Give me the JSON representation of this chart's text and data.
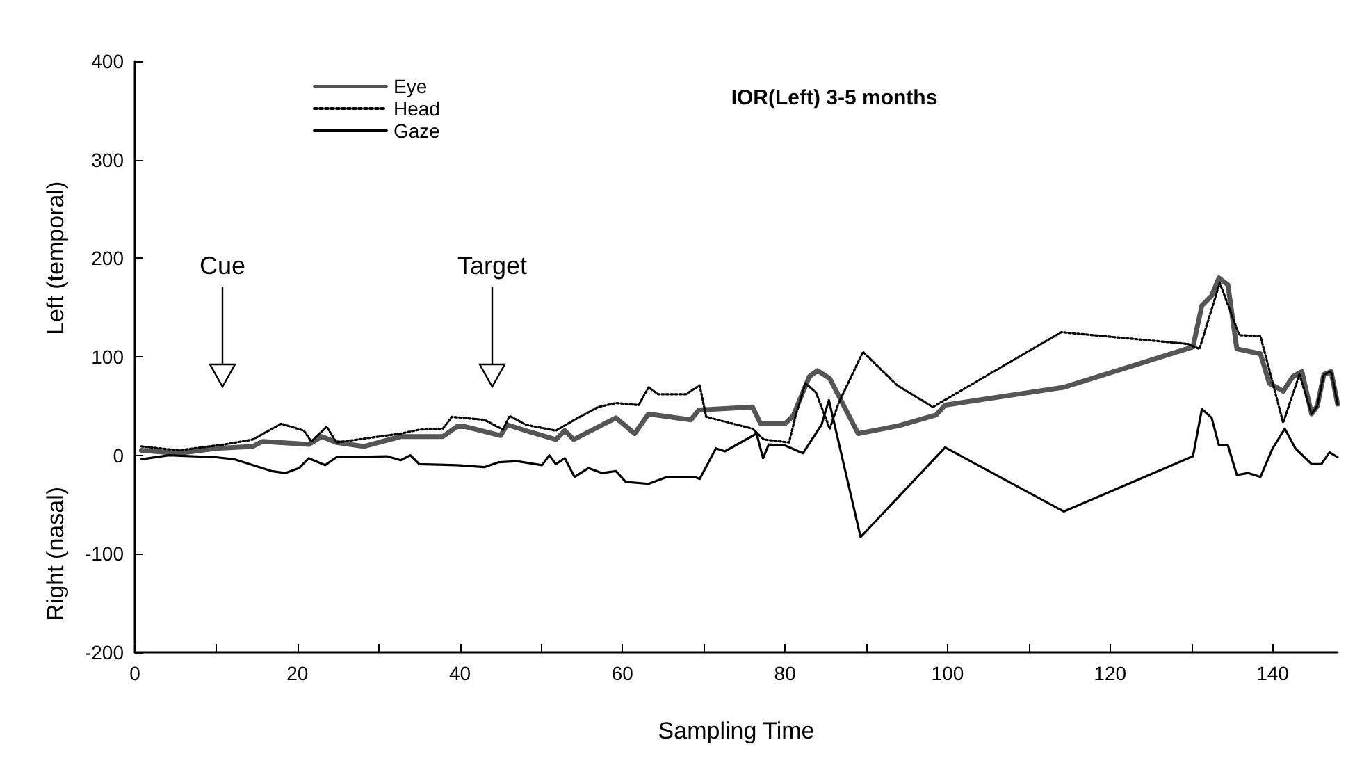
{
  "chart_data": {
    "type": "line",
    "title": "IOR(Left) 3-5 months",
    "xlabel": "Sampling Time",
    "ylabel": "Left (temporal)",
    "annotations": [
      "Right (nasal)",
      "Cue",
      "Target"
    ],
    "xlim": [
      0,
      148
    ],
    "ylim": [
      -200,
      400
    ],
    "xticks": [
      0,
      {
        "value": 10,
        "label": null
      },
      20,
      {
        "value": 30,
        "label": null
      },
      40,
      {
        "value": 50,
        "label": null
      },
      60,
      {
        "value": 70,
        "label": null
      },
      80,
      {
        "value": 90,
        "label": null
      },
      100,
      {
        "value": 110,
        "label": null
      },
      120,
      {
        "value": 130,
        "label": null
      },
      140
    ],
    "yticks": [
      -200,
      -100,
      0,
      100,
      200,
      300,
      400
    ],
    "grid": false,
    "legend": "top left",
    "marker": "none",
    "series": [
      {
        "name": "Eye",
        "color": "#555555",
        "line_style": "solid",
        "x": [
          0.8,
          5.4,
          10,
          14.5,
          15.7,
          21.4,
          23,
          24.8,
          28.2,
          32.7,
          37.9,
          39.6,
          40.7,
          45,
          45.8,
          48.1,
          51.8,
          52.9,
          54,
          59.2,
          61.5,
          63.2,
          68.4,
          69.4,
          76,
          77,
          80,
          81,
          83,
          84,
          85.5,
          89,
          94,
          98.6,
          99.7,
          114.3,
          130.2,
          131.3,
          132.5,
          133.4,
          134.5,
          135.6,
          138.5,
          139.6,
          141.3,
          142.5,
          143.6,
          144.8,
          145.5,
          146.3,
          147.2,
          148
        ],
        "values": [
          5,
          2,
          7,
          9,
          14,
          11,
          19,
          13,
          9,
          19,
          19,
          29,
          29,
          20,
          31,
          25,
          16,
          25,
          16,
          38,
          22,
          42,
          36,
          46,
          49,
          32,
          32,
          40,
          80,
          86,
          78,
          22,
          30,
          41,
          51,
          69,
          110,
          152,
          162,
          180,
          173,
          108,
          103,
          73,
          65,
          80,
          85,
          42,
          50,
          82,
          85,
          52
        ]
      },
      {
        "name": "Head",
        "color": "#000000",
        "line_style": "dotted",
        "x": [
          0.8,
          5.4,
          11,
          14.5,
          18,
          20.8,
          21.7,
          23.6,
          24.8,
          32.7,
          35,
          37.9,
          39,
          43,
          45.3,
          46.1,
          48.1,
          51.8,
          54.1,
          57,
          59.2,
          62,
          63.2,
          64.4,
          67.8,
          69.5,
          70.3,
          76,
          77.4,
          80.5,
          81.3,
          82.5,
          83.8,
          85.5,
          86.6,
          89.6,
          93.8,
          98.2,
          114,
          129.6,
          131,
          133.5,
          135.9,
          138.5,
          141.3,
          143.3,
          144.8,
          145.5,
          146.3,
          147.2,
          148
        ],
        "values": [
          9,
          5,
          11,
          16,
          32,
          25,
          14,
          29,
          13,
          22,
          26,
          27,
          39,
          36,
          26,
          40,
          31,
          25,
          36,
          49,
          53,
          51,
          69,
          62,
          62,
          71,
          39,
          27,
          16,
          13,
          40,
          73,
          64,
          27,
          53,
          105,
          71,
          49,
          125,
          113,
          108,
          175,
          122,
          121,
          33,
          82,
          42,
          50,
          82,
          85,
          52
        ]
      },
      {
        "name": "Gaze",
        "color": "#000000",
        "line_style": "solid",
        "x": [
          0.8,
          4.2,
          10,
          12.2,
          16.8,
          18.5,
          20.2,
          21.4,
          23.4,
          24.8,
          31,
          32.7,
          33.9,
          35,
          39.6,
          43,
          44.8,
          47,
          50.1,
          51,
          51.8,
          52.9,
          54.1,
          55.8,
          57.5,
          59.2,
          60.4,
          63.2,
          65.5,
          68.9,
          69.5,
          71.5,
          72.6,
          76.5,
          77.3,
          78,
          80,
          82.2,
          84.5,
          85.4,
          89.3,
          99.7,
          114.3,
          130.2,
          131.3,
          132.5,
          133.4,
          134.5,
          135.6,
          137,
          138.5,
          140,
          141.5,
          142.8,
          144.8,
          146,
          147,
          148
        ],
        "values": [
          -4,
          0,
          -2,
          -4,
          -16,
          -18,
          -13,
          -3,
          -10,
          -2,
          -1,
          -5,
          0,
          -9,
          -10,
          -12,
          -7,
          -6,
          -10,
          0,
          -9,
          -3,
          -22,
          -13,
          -18,
          -16,
          -27,
          -29,
          -22,
          -22,
          -24,
          7,
          4,
          22,
          -3,
          11,
          10,
          2,
          31,
          56,
          -83,
          8,
          -57,
          -1,
          47,
          38,
          10,
          10,
          -20,
          -18,
          -22,
          7,
          27,
          7,
          -9,
          -9,
          3,
          -2
        ]
      }
    ]
  }
}
